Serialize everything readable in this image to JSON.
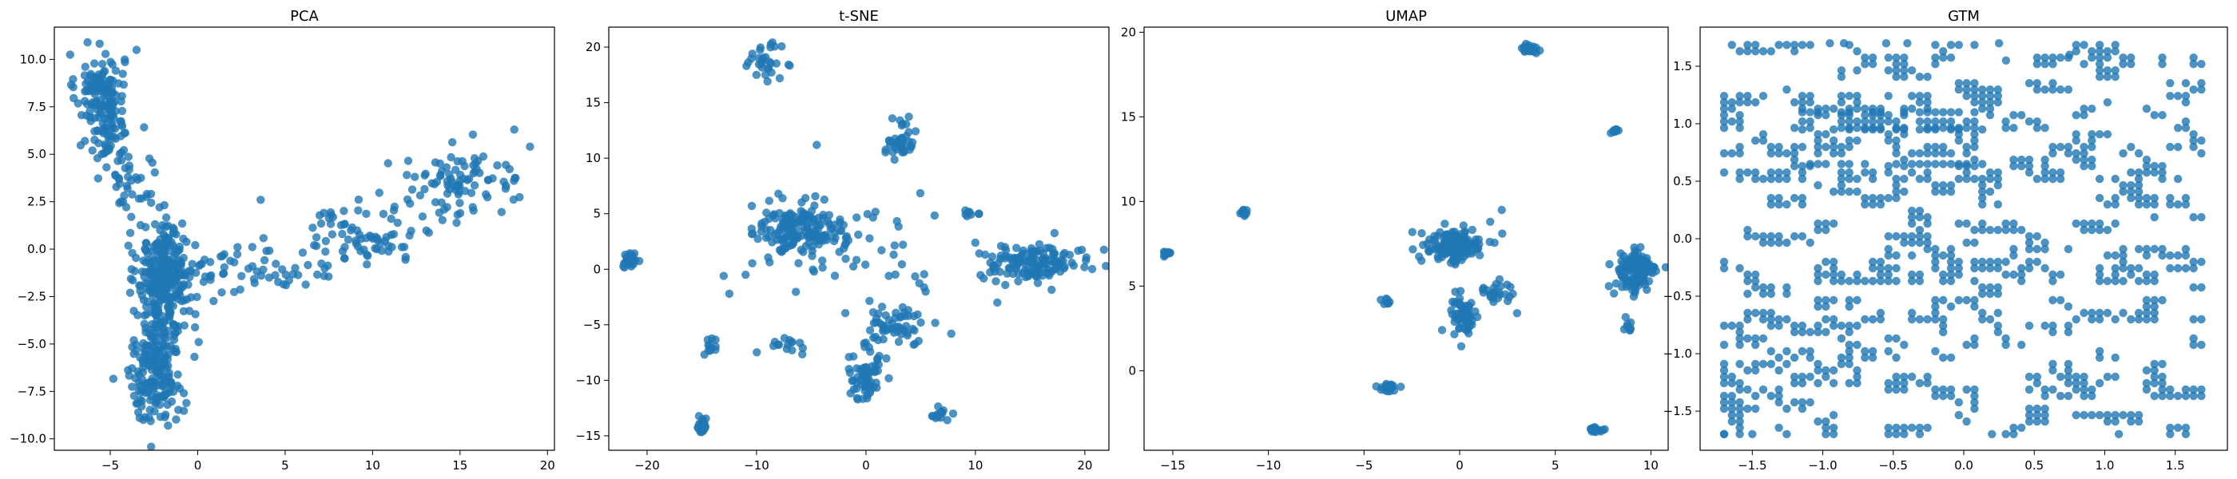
{
  "colors": {
    "point": "#1f77b4",
    "axis": "#000000",
    "background": "#ffffff"
  },
  "chart_data": [
    {
      "type": "scatter",
      "title": "PCA",
      "xlim": [
        -8.2,
        20.4
      ],
      "ylim": [
        -10.6,
        11.7
      ],
      "xticks": [
        -5,
        0,
        5,
        10,
        15,
        20
      ],
      "yticks": [
        -10.0,
        -7.5,
        -5.0,
        -2.5,
        0.0,
        2.5,
        5.0,
        7.5,
        10.0
      ],
      "ytick_labels": [
        "−10.0",
        "−7.5",
        "−5.0",
        "−2.5",
        "0.0",
        "2.5",
        "5.0",
        "7.5",
        "10.0"
      ],
      "xtick_labels": [
        "−5",
        "0",
        "5",
        "10",
        "15",
        "20"
      ],
      "grid": false,
      "clusters": [
        {
          "cx": -5.6,
          "cy": 8.3,
          "sx": 0.7,
          "sy": 1.0,
          "n": 120
        },
        {
          "cx": -5.0,
          "cy": 5.8,
          "sx": 0.6,
          "sy": 0.8,
          "n": 50
        },
        {
          "cx": -3.8,
          "cy": 3.6,
          "sx": 0.8,
          "sy": 0.9,
          "n": 30
        },
        {
          "cx": -1.8,
          "cy": -1.2,
          "sx": 0.8,
          "sy": 1.3,
          "n": 260
        },
        {
          "cx": -2.0,
          "cy": -4.0,
          "sx": 0.7,
          "sy": 1.0,
          "n": 70
        },
        {
          "cx": -2.5,
          "cy": -6.8,
          "sx": 0.8,
          "sy": 1.1,
          "n": 150
        },
        {
          "cx": 4.0,
          "cy": -1.0,
          "sx": 2.0,
          "sy": 0.7,
          "n": 60
        },
        {
          "cx": 9.5,
          "cy": 0.8,
          "sx": 2.0,
          "sy": 0.7,
          "n": 70
        },
        {
          "cx": 15.0,
          "cy": 3.5,
          "sx": 2.0,
          "sy": 0.9,
          "n": 90
        }
      ],
      "points": [
        [
          -6.3,
          10.9
        ],
        [
          -3.5,
          10.5
        ],
        [
          18.1,
          6.3
        ],
        [
          19.0,
          5.4
        ],
        [
          -1.7,
          -9.3
        ],
        [
          -3.8,
          1.7
        ],
        [
          3.6,
          2.6
        ]
      ]
    },
    {
      "type": "scatter",
      "title": "t-SNE",
      "xlim": [
        -23.5,
        22.2
      ],
      "ylim": [
        -16.3,
        21.8
      ],
      "xticks": [
        -20,
        -10,
        0,
        10,
        20
      ],
      "yticks": [
        -15,
        -10,
        -5,
        0,
        5,
        10,
        15,
        20
      ],
      "ytick_labels": [
        "−15",
        "−10",
        "−5",
        "0",
        "5",
        "10",
        "15",
        "20"
      ],
      "xtick_labels": [
        "−20",
        "−10",
        "0",
        "10",
        "20"
      ],
      "grid": false,
      "clusters": [
        {
          "cx": -21.5,
          "cy": 0.8,
          "sx": 0.3,
          "sy": 0.4,
          "n": 25
        },
        {
          "cx": -15.0,
          "cy": -14.2,
          "sx": 0.2,
          "sy": 0.4,
          "n": 25
        },
        {
          "cx": -14.2,
          "cy": -7.0,
          "sx": 0.3,
          "sy": 0.6,
          "n": 12
        },
        {
          "cx": -9.3,
          "cy": 18.8,
          "sx": 0.8,
          "sy": 0.7,
          "n": 30
        },
        {
          "cx": -6.0,
          "cy": 3.5,
          "sx": 2.0,
          "sy": 1.3,
          "n": 170
        },
        {
          "cx": -7.0,
          "cy": -6.8,
          "sx": 1.2,
          "sy": 0.4,
          "n": 15
        },
        {
          "cx": 3.2,
          "cy": 11.8,
          "sx": 0.7,
          "sy": 0.8,
          "n": 40
        },
        {
          "cx": 0.0,
          "cy": -9.8,
          "sx": 0.8,
          "sy": 1.2,
          "n": 60
        },
        {
          "cx": 2.5,
          "cy": -5.0,
          "sx": 1.3,
          "sy": 1.0,
          "n": 50
        },
        {
          "cx": 6.8,
          "cy": -13.3,
          "sx": 0.6,
          "sy": 0.3,
          "n": 14
        },
        {
          "cx": 9.5,
          "cy": 4.9,
          "sx": 0.5,
          "sy": 0.3,
          "n": 8
        },
        {
          "cx": 15.5,
          "cy": 0.6,
          "sx": 2.6,
          "sy": 0.8,
          "n": 140
        },
        {
          "cx": 2.0,
          "cy": 0.0,
          "sx": 3.5,
          "sy": 2.5,
          "n": 40
        }
      ],
      "points": [
        [
          -4.5,
          11.2
        ],
        [
          -11.0,
          -0.5
        ],
        [
          -13.0,
          -0.6
        ],
        [
          -10.0,
          17.5
        ],
        [
          7.8,
          -5.8
        ],
        [
          12.0,
          -3.0
        ],
        [
          -8.0,
          6.8
        ]
      ]
    },
    {
      "type": "scatter",
      "title": "UMAP",
      "xlim": [
        -16.5,
        10.9
      ],
      "ylim": [
        -4.7,
        20.3
      ],
      "xticks": [
        -15,
        -10,
        -5,
        0,
        5,
        10
      ],
      "yticks": [
        0,
        5,
        10,
        15,
        20
      ],
      "ytick_labels": [
        "0",
        "5",
        "10",
        "15",
        "20"
      ],
      "xtick_labels": [
        "−15",
        "−10",
        "−5",
        "0",
        "5",
        "10"
      ],
      "grid": false,
      "clusters": [
        {
          "cx": -15.4,
          "cy": 6.9,
          "sx": 0.15,
          "sy": 0.15,
          "n": 10
        },
        {
          "cx": -11.4,
          "cy": 9.3,
          "sx": 0.15,
          "sy": 0.15,
          "n": 10
        },
        {
          "cx": -3.8,
          "cy": 4.1,
          "sx": 0.15,
          "sy": 0.15,
          "n": 8
        },
        {
          "cx": -3.7,
          "cy": -1.0,
          "sx": 0.25,
          "sy": 0.12,
          "n": 25
        },
        {
          "cx": -0.3,
          "cy": 7.4,
          "sx": 0.8,
          "sy": 0.5,
          "n": 130
        },
        {
          "cx": 0.2,
          "cy": 3.2,
          "sx": 0.35,
          "sy": 0.8,
          "n": 60
        },
        {
          "cx": 1.8,
          "cy": 4.7,
          "sx": 0.5,
          "sy": 0.4,
          "n": 25
        },
        {
          "cx": 3.6,
          "cy": 19.0,
          "sx": 0.25,
          "sy": 0.15,
          "n": 25
        },
        {
          "cx": 8.1,
          "cy": 14.2,
          "sx": 0.1,
          "sy": 0.1,
          "n": 10
        },
        {
          "cx": 7.2,
          "cy": -3.5,
          "sx": 0.2,
          "sy": 0.1,
          "n": 15
        },
        {
          "cx": 9.2,
          "cy": 5.8,
          "sx": 0.6,
          "sy": 0.7,
          "n": 110
        },
        {
          "cx": 8.8,
          "cy": 2.8,
          "sx": 0.12,
          "sy": 0.3,
          "n": 8
        }
      ],
      "points": [
        [
          2.2,
          9.5
        ],
        [
          1.6,
          8.8
        ],
        [
          3.0,
          3.4
        ],
        [
          -2.0,
          6.5
        ],
        [
          7.8,
          5.0
        ]
      ]
    },
    {
      "type": "scatter",
      "title": "GTM",
      "xlim": [
        -1.87,
        1.87
      ],
      "ylim": [
        -1.84,
        1.84
      ],
      "xticks": [
        -1.5,
        -1.0,
        -0.5,
        0.0,
        0.5,
        1.0,
        1.5
      ],
      "yticks": [
        -1.5,
        -1.0,
        -0.5,
        0.0,
        0.5,
        1.0,
        1.5
      ],
      "ytick_labels": [
        "−1.5",
        "−1.0",
        "−0.5",
        "0.0",
        "0.5",
        "1.0",
        "1.5"
      ],
      "xtick_labels": [
        "−1.5",
        "−1.0",
        "−0.5",
        "0.0",
        "0.5",
        "1.0",
        "1.5"
      ],
      "grid": false,
      "lattice": {
        "min": -1.7,
        "max": 1.7,
        "step": 0.0555,
        "fill_fraction": 0.27
      },
      "dense_rows": [
        1.1,
        0.95,
        0.65
      ],
      "points": [
        [
          -0.95,
          1.7
        ],
        [
          -0.85,
          1.7
        ],
        [
          -0.55,
          1.7
        ],
        [
          -0.4,
          1.7
        ],
        [
          0.25,
          1.7
        ],
        [
          0.3,
          1.55
        ],
        [
          0.75,
          1.6
        ],
        [
          -1.7,
          -1.7
        ],
        [
          -1.5,
          -1.7
        ],
        [
          0.2,
          -1.7
        ],
        [
          1.1,
          -1.7
        ]
      ]
    }
  ]
}
